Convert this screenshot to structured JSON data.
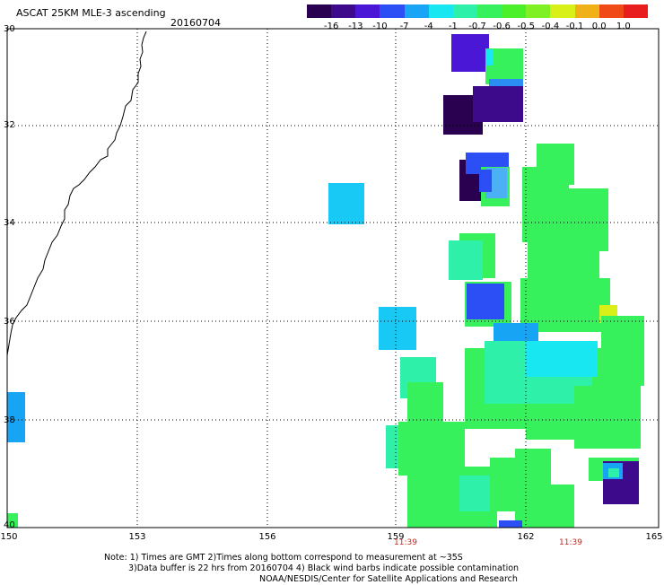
{
  "header": {
    "title": "ASCAT 25KM MLE-3 ascending",
    "date": "20160704"
  },
  "colorbar": {
    "ticks": [
      "-16",
      "-13",
      "-10",
      "-7",
      "-4",
      "-1",
      "-0.7",
      "-0.6",
      "-0.5",
      "-0.4",
      "-0.1",
      "0.0",
      "1.0"
    ],
    "colors": [
      "#2a0050",
      "#3d0a8c",
      "#4b17d6",
      "#2b4ef5",
      "#1aa4f5",
      "#18e6f0",
      "#2ff0a8",
      "#36f05c",
      "#4cf02a",
      "#7ff024",
      "#d8f018",
      "#f0b018",
      "#f04a18",
      "#e81e1e"
    ]
  },
  "map": {
    "lat_labels": [
      "30",
      "32",
      "34",
      "36",
      "38",
      "40"
    ],
    "lon_labels": [
      "150",
      "153",
      "156",
      "159",
      "162",
      "165"
    ],
    "time_labels": [
      "11:39",
      "11:39"
    ]
  },
  "note": {
    "line1": "Note: 1) Times are GMT 2)Times along bottom correspond to measurement at ~35S",
    "line2": "3)Data buffer is 22 hrs from 20160704 4) Black wind barbs indicate possible contamination",
    "line3": "NOAA/NESDIS/Center for Satellite Applications and Research"
  }
}
